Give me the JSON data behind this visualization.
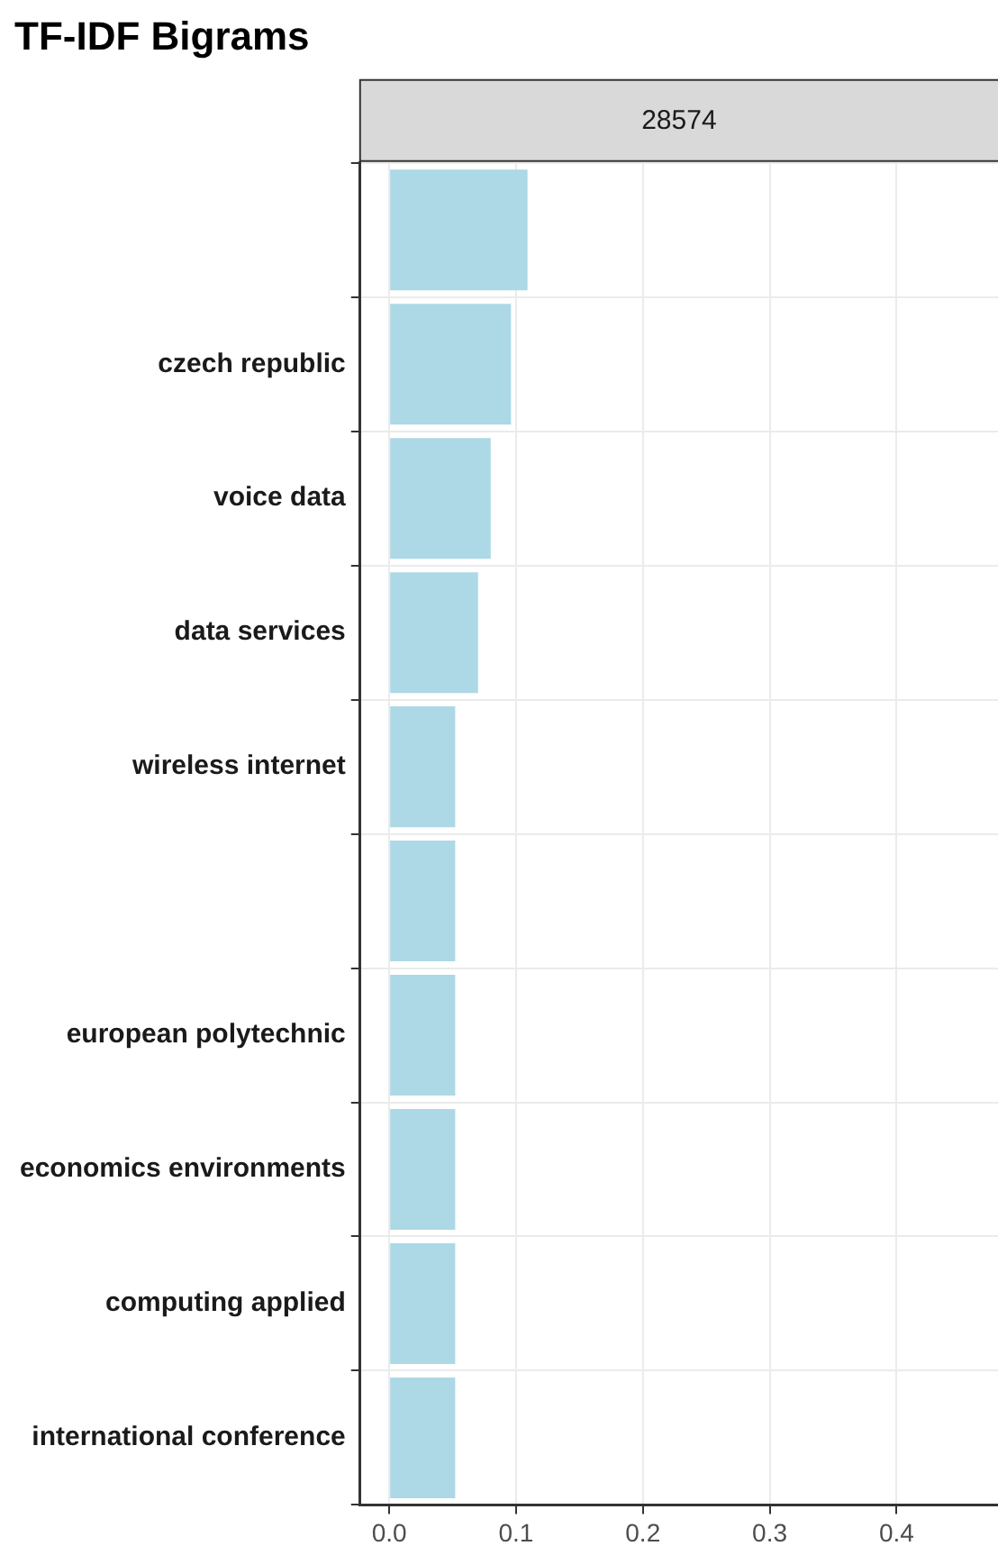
{
  "chart_data": {
    "type": "bar",
    "orientation": "horizontal",
    "title": "TF-IDF Bigrams",
    "subtitle": "28574",
    "categories": [
      null,
      "czech republic",
      "voice data",
      "data services",
      "wireless internet",
      null,
      "european polytechnic",
      "economics environments",
      "computing applied",
      "international conference"
    ],
    "values": [
      0.109,
      0.096,
      0.08,
      0.07,
      0.052,
      0.052,
      0.052,
      0.052,
      0.052,
      0.052
    ],
    "color": "#add8e6",
    "xlim": [
      -0.023,
      0.48
    ],
    "xticks": [
      {
        "value": 0,
        "label": "0.0"
      },
      0.1,
      0.2,
      0.3,
      0.4
    ],
    "grid": true,
    "legend": false
  }
}
